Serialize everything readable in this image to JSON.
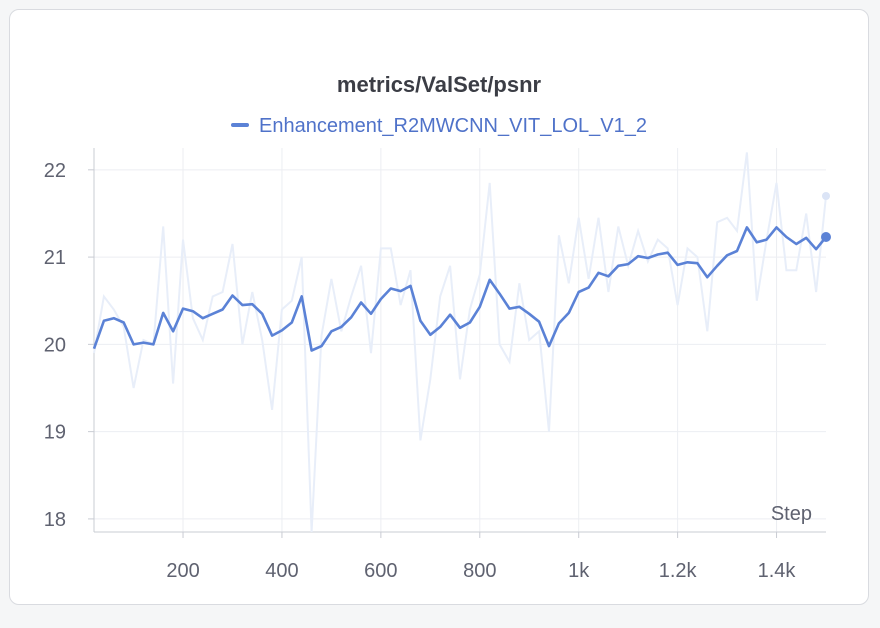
{
  "chart_data": {
    "type": "line",
    "title": "metrics/ValSet/psnr",
    "xlabel": "Step",
    "ylabel": "",
    "legend_position": "top-center",
    "grid": true,
    "xlim": [
      20,
      1500
    ],
    "ylim": [
      17.85,
      22.25
    ],
    "x_ticks": [
      200,
      400,
      600,
      800,
      1000,
      1200,
      1400
    ],
    "x_tick_labels": [
      "200",
      "400",
      "600",
      "800",
      "1k",
      "1.2k",
      "1.4k"
    ],
    "y_ticks": [
      18,
      19,
      20,
      21,
      22
    ],
    "y_tick_labels": [
      "18",
      "19",
      "20",
      "21",
      "22"
    ],
    "series": [
      {
        "name": "Enhancement_R2MWCNN_VIT_LOL_V1_2",
        "color": "#5b82d6",
        "raw_color": "#e8eef9",
        "x": [
          20,
          40,
          60,
          80,
          100,
          120,
          140,
          160,
          180,
          200,
          220,
          240,
          260,
          280,
          300,
          320,
          340,
          360,
          380,
          400,
          420,
          440,
          460,
          480,
          500,
          520,
          540,
          560,
          580,
          600,
          620,
          640,
          660,
          680,
          700,
          720,
          740,
          760,
          780,
          800,
          820,
          840,
          860,
          880,
          900,
          920,
          940,
          960,
          980,
          1000,
          1020,
          1040,
          1060,
          1080,
          1100,
          1120,
          1140,
          1160,
          1180,
          1200,
          1220,
          1240,
          1260,
          1280,
          1300,
          1320,
          1340,
          1360,
          1380,
          1400,
          1420,
          1440,
          1460,
          1480,
          1500
        ],
        "smoothed": [
          19.95,
          20.27,
          20.3,
          20.25,
          20.0,
          20.02,
          20.0,
          20.36,
          20.15,
          20.41,
          20.38,
          20.3,
          20.35,
          20.4,
          20.56,
          20.45,
          20.46,
          20.35,
          20.1,
          20.16,
          20.25,
          20.55,
          19.93,
          19.98,
          20.15,
          20.2,
          20.31,
          20.48,
          20.35,
          20.52,
          20.64,
          20.61,
          20.67,
          20.27,
          20.11,
          20.2,
          20.34,
          20.19,
          20.25,
          20.43,
          20.74,
          20.58,
          20.41,
          20.43,
          20.35,
          20.26,
          19.98,
          20.24,
          20.36,
          20.6,
          20.65,
          20.82,
          20.78,
          20.9,
          20.92,
          21.01,
          20.99,
          21.03,
          21.05,
          20.91,
          20.94,
          20.93,
          20.77,
          20.9,
          21.02,
          21.07,
          21.34,
          21.17,
          21.2,
          21.34,
          21.23,
          21.15,
          21.22,
          21.09,
          21.23
        ],
        "raw": [
          19.9,
          20.55,
          20.4,
          20.2,
          19.5,
          20.05,
          20.0,
          21.35,
          19.55,
          21.2,
          20.3,
          20.05,
          20.55,
          20.6,
          21.15,
          20.0,
          20.6,
          20.05,
          19.25,
          20.4,
          20.5,
          21.0,
          17.85,
          20.1,
          20.75,
          20.15,
          20.55,
          20.9,
          19.9,
          21.1,
          21.1,
          20.45,
          20.85,
          18.9,
          19.6,
          20.55,
          20.9,
          19.6,
          20.4,
          20.8,
          21.85,
          20.0,
          19.8,
          20.7,
          20.05,
          20.15,
          19.0,
          21.25,
          20.7,
          21.45,
          20.75,
          21.45,
          20.6,
          21.35,
          20.9,
          21.3,
          20.95,
          21.2,
          21.1,
          20.45,
          21.1,
          21.0,
          20.15,
          21.4,
          21.45,
          21.3,
          22.2,
          20.5,
          21.2,
          21.85,
          20.85,
          20.85,
          21.5,
          20.6,
          21.7
        ]
      }
    ]
  }
}
